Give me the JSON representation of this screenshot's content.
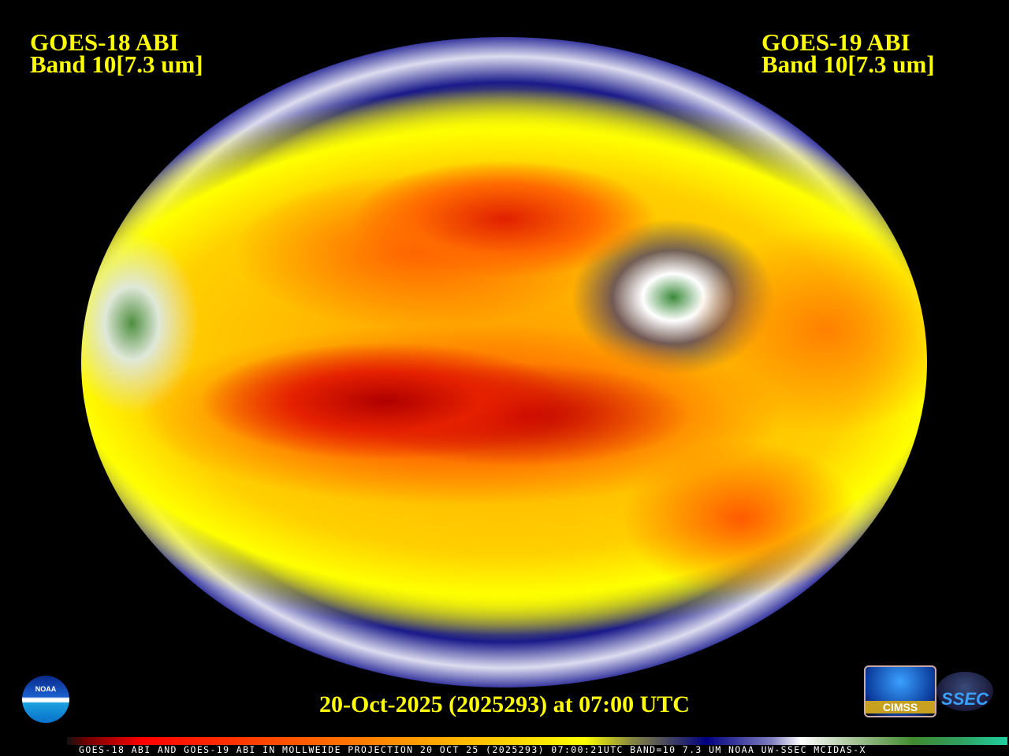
{
  "header": {
    "left_title_line1": "GOES-18 ABI",
    "left_title_line2": "Band 10[7.3 um]",
    "right_title_line1": "GOES-19 ABI",
    "right_title_line2": "Band 10[7.3 um]"
  },
  "map": {
    "projection": "Mollweide",
    "imagery": "water vapor satellite composite"
  },
  "footer": {
    "date": "20-Oct-2025 (2025293) at 07:00 UTC",
    "caption": "GOES-18 ABI AND GOES-19 ABI IN MOLLWEIDE PROJECTION 20 OCT 25 (2025293) 07:00:21UTC BAND=10 7.3 UM NOAA UW-SSEC MCIDAS-X"
  },
  "logos": {
    "noaa": "NOAA",
    "cimss": "CIMSS",
    "ssec": "SSEC"
  },
  "colorbar": {
    "colors": [
      "#700000",
      "#ff0000",
      "#ff9000",
      "#ffff00",
      "#000080",
      "#ffffff",
      "#408a30",
      "#20d0a0"
    ]
  }
}
